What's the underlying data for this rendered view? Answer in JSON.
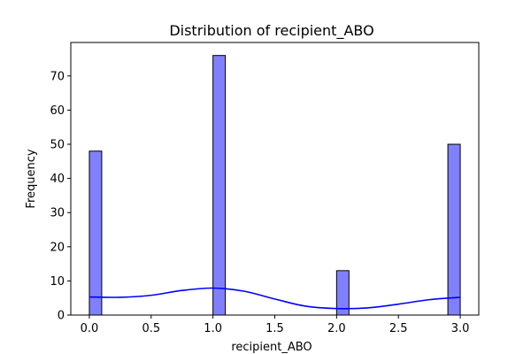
{
  "chart_data": {
    "type": "bar",
    "title": "Distribution of recipient_ABO",
    "xlabel": "recipient_ABO",
    "ylabel": "Frequency",
    "xlim": [
      -0.15,
      3.15
    ],
    "ylim": [
      0,
      79.8
    ],
    "xticks": [
      "0.0",
      "0.5",
      "1.0",
      "1.5",
      "2.0",
      "2.5",
      "3.0"
    ],
    "yticks": [
      "0",
      "10",
      "20",
      "30",
      "40",
      "50",
      "60",
      "70"
    ],
    "bins": [
      {
        "x0": 0.0,
        "x1": 0.1,
        "count": 48
      },
      {
        "x0": 1.0,
        "x1": 1.1,
        "count": 76
      },
      {
        "x0": 2.0,
        "x1": 2.1,
        "count": 13
      },
      {
        "x0": 2.9,
        "x1": 3.0,
        "count": 50
      }
    ],
    "bar_color": "#8080ff",
    "bar_edge_color": "#000000",
    "kde": {
      "color": "#0000ff",
      "x": [
        0.0,
        0.25,
        0.5,
        0.75,
        1.0,
        1.25,
        1.5,
        1.75,
        2.0,
        2.25,
        2.5,
        2.75,
        3.0
      ],
      "y": [
        5.3,
        5.2,
        5.8,
        7.2,
        7.9,
        7.0,
        4.7,
        2.6,
        1.9,
        2.1,
        3.2,
        4.5,
        5.2
      ]
    },
    "grid": false,
    "legend": "none"
  }
}
